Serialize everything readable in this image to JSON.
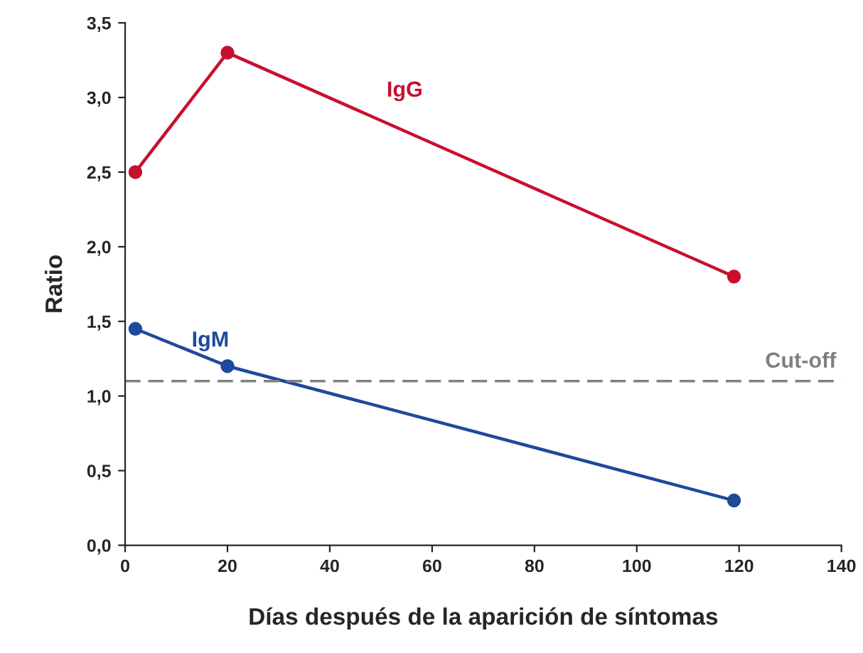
{
  "chart_data": {
    "type": "line",
    "xlabel": "Días después de la aparición de síntomas",
    "ylabel": "Ratio",
    "series": [
      {
        "name": "IgG",
        "color": "#c8102e",
        "x": [
          2,
          20,
          119
        ],
        "values": [
          2.5,
          3.3,
          1.8
        ]
      },
      {
        "name": "IgM",
        "color": "#1e4a9c",
        "x": [
          2,
          20,
          119
        ],
        "values": [
          1.45,
          1.2,
          0.3
        ]
      }
    ],
    "xlim": [
      0,
      140
    ],
    "xticks": [
      0,
      20,
      40,
      60,
      80,
      100,
      120,
      140
    ],
    "ylim": [
      0,
      3.5
    ],
    "yticks": [
      {
        "value": 0,
        "label": "0,0"
      },
      {
        "value": 0.5,
        "label": "0,5"
      },
      {
        "value": 1,
        "label": "1,0"
      },
      {
        "value": 1.5,
        "label": "1,5"
      },
      {
        "value": 2,
        "label": "2,0"
      },
      {
        "value": 2.5,
        "label": "2,5"
      },
      {
        "value": 3,
        "label": "3,0"
      },
      {
        "value": 3.5,
        "label": "3,5"
      }
    ],
    "ref_lines": [
      {
        "axis": "y",
        "value": 1.1,
        "label": "Cut-off",
        "color": "#808080",
        "line_style": "dashed"
      }
    ],
    "marker": "circle",
    "line_style": "solid",
    "grid": false,
    "legend": false
  }
}
